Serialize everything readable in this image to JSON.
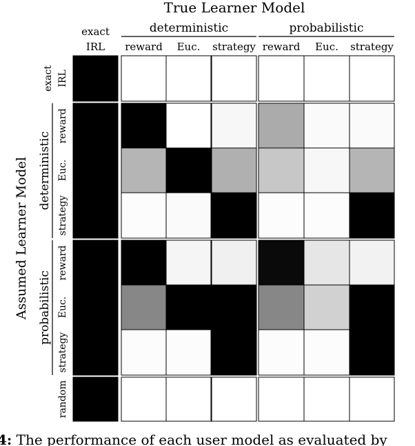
{
  "chart_data": {
    "type": "heatmap",
    "title": "True Learner Model",
    "ylabel": "Assumed Learner Model",
    "column_groups": [
      {
        "label": "",
        "columns": [
          "exact IRL"
        ]
      },
      {
        "label": "deterministic",
        "columns": [
          "reward",
          "Euc.",
          "strategy"
        ]
      },
      {
        "label": "probabilistic",
        "columns": [
          "reward",
          "Euc.",
          "strategy"
        ]
      }
    ],
    "column_header_lines": [
      [
        "exact",
        "IRL"
      ],
      [
        "reward"
      ],
      [
        "Euc."
      ],
      [
        "strategy"
      ],
      [
        "reward"
      ],
      [
        "Euc."
      ],
      [
        "strategy"
      ]
    ],
    "row_groups": [
      {
        "label": "",
        "rows": [
          "exact IRL"
        ]
      },
      {
        "label": "deterministic",
        "rows": [
          "reward",
          "Euc.",
          "strategy"
        ]
      },
      {
        "label": "probabilistic",
        "rows": [
          "reward",
          "Euc.",
          "strategy"
        ]
      },
      {
        "label": "",
        "rows": [
          "random"
        ]
      }
    ],
    "row_header_lines": [
      [
        "exact",
        "IRL"
      ],
      [
        "reward"
      ],
      [
        "Euc."
      ],
      [
        "strategy"
      ],
      [
        "reward"
      ],
      [
        "Euc."
      ],
      [
        "strategy"
      ],
      [
        "random"
      ]
    ],
    "colorscale": {
      "low": "#ffffff",
      "high": "#000000",
      "range": [
        0,
        1
      ]
    },
    "values": [
      [
        1.0,
        0.0,
        0.0,
        0.0,
        0.0,
        0.0,
        0.0
      ],
      [
        1.0,
        1.0,
        0.0,
        0.03,
        0.33,
        0.02,
        0.02
      ],
      [
        1.0,
        0.29,
        1.0,
        0.31,
        0.22,
        0.03,
        0.29
      ],
      [
        1.0,
        0.01,
        0.02,
        1.0,
        0.01,
        0.01,
        1.0
      ],
      [
        1.0,
        1.0,
        0.04,
        0.06,
        0.96,
        0.1,
        0.05
      ],
      [
        1.0,
        0.47,
        1.0,
        1.0,
        0.47,
        0.18,
        1.0
      ],
      [
        1.0,
        0.01,
        0.01,
        1.0,
        0.01,
        0.01,
        1.0
      ],
      [
        1.0,
        0.0,
        0.0,
        0.0,
        0.0,
        0.0,
        0.0
      ]
    ]
  },
  "caption": {
    "label": "4:",
    "text": " The performance of each user model as evaluated by"
  }
}
